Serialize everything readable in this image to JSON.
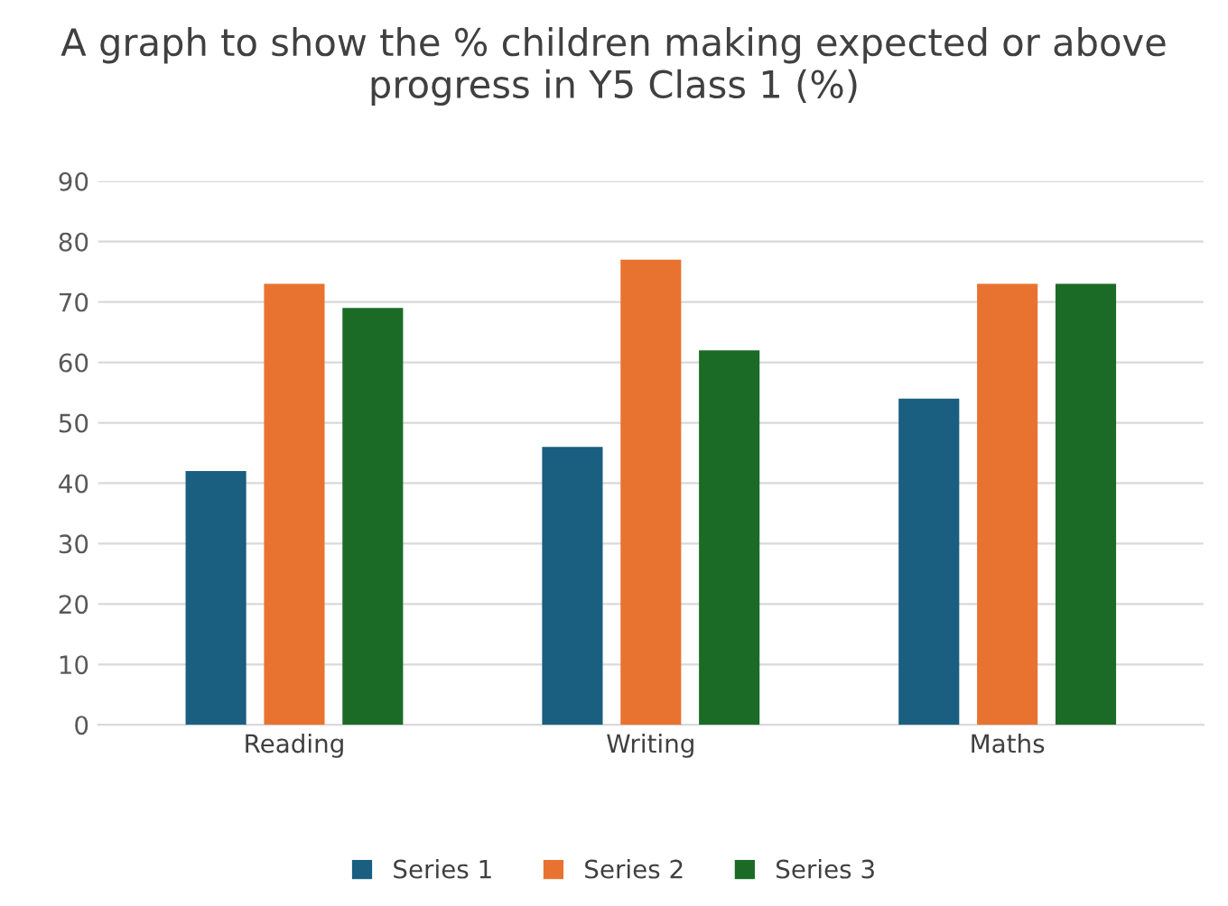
{
  "chart_data": {
    "type": "bar",
    "title": "A graph to show the % children making expected or above progress in Y5 Class 1 (%)",
    "categories": [
      "Reading",
      "Writing",
      "Maths"
    ],
    "series": [
      {
        "name": "Series 1",
        "color": "#1a5e80",
        "values": [
          42,
          46,
          54
        ]
      },
      {
        "name": "Series 2",
        "color": "#e87330",
        "values": [
          73,
          77,
          73
        ]
      },
      {
        "name": "Series 3",
        "color": "#1b6b27",
        "values": [
          69,
          62,
          73
        ]
      }
    ],
    "ylim": [
      0,
      90
    ],
    "yticks": [
      0,
      10,
      20,
      30,
      40,
      50,
      60,
      70,
      80,
      90
    ],
    "grid": "y",
    "legend": "bottom"
  }
}
